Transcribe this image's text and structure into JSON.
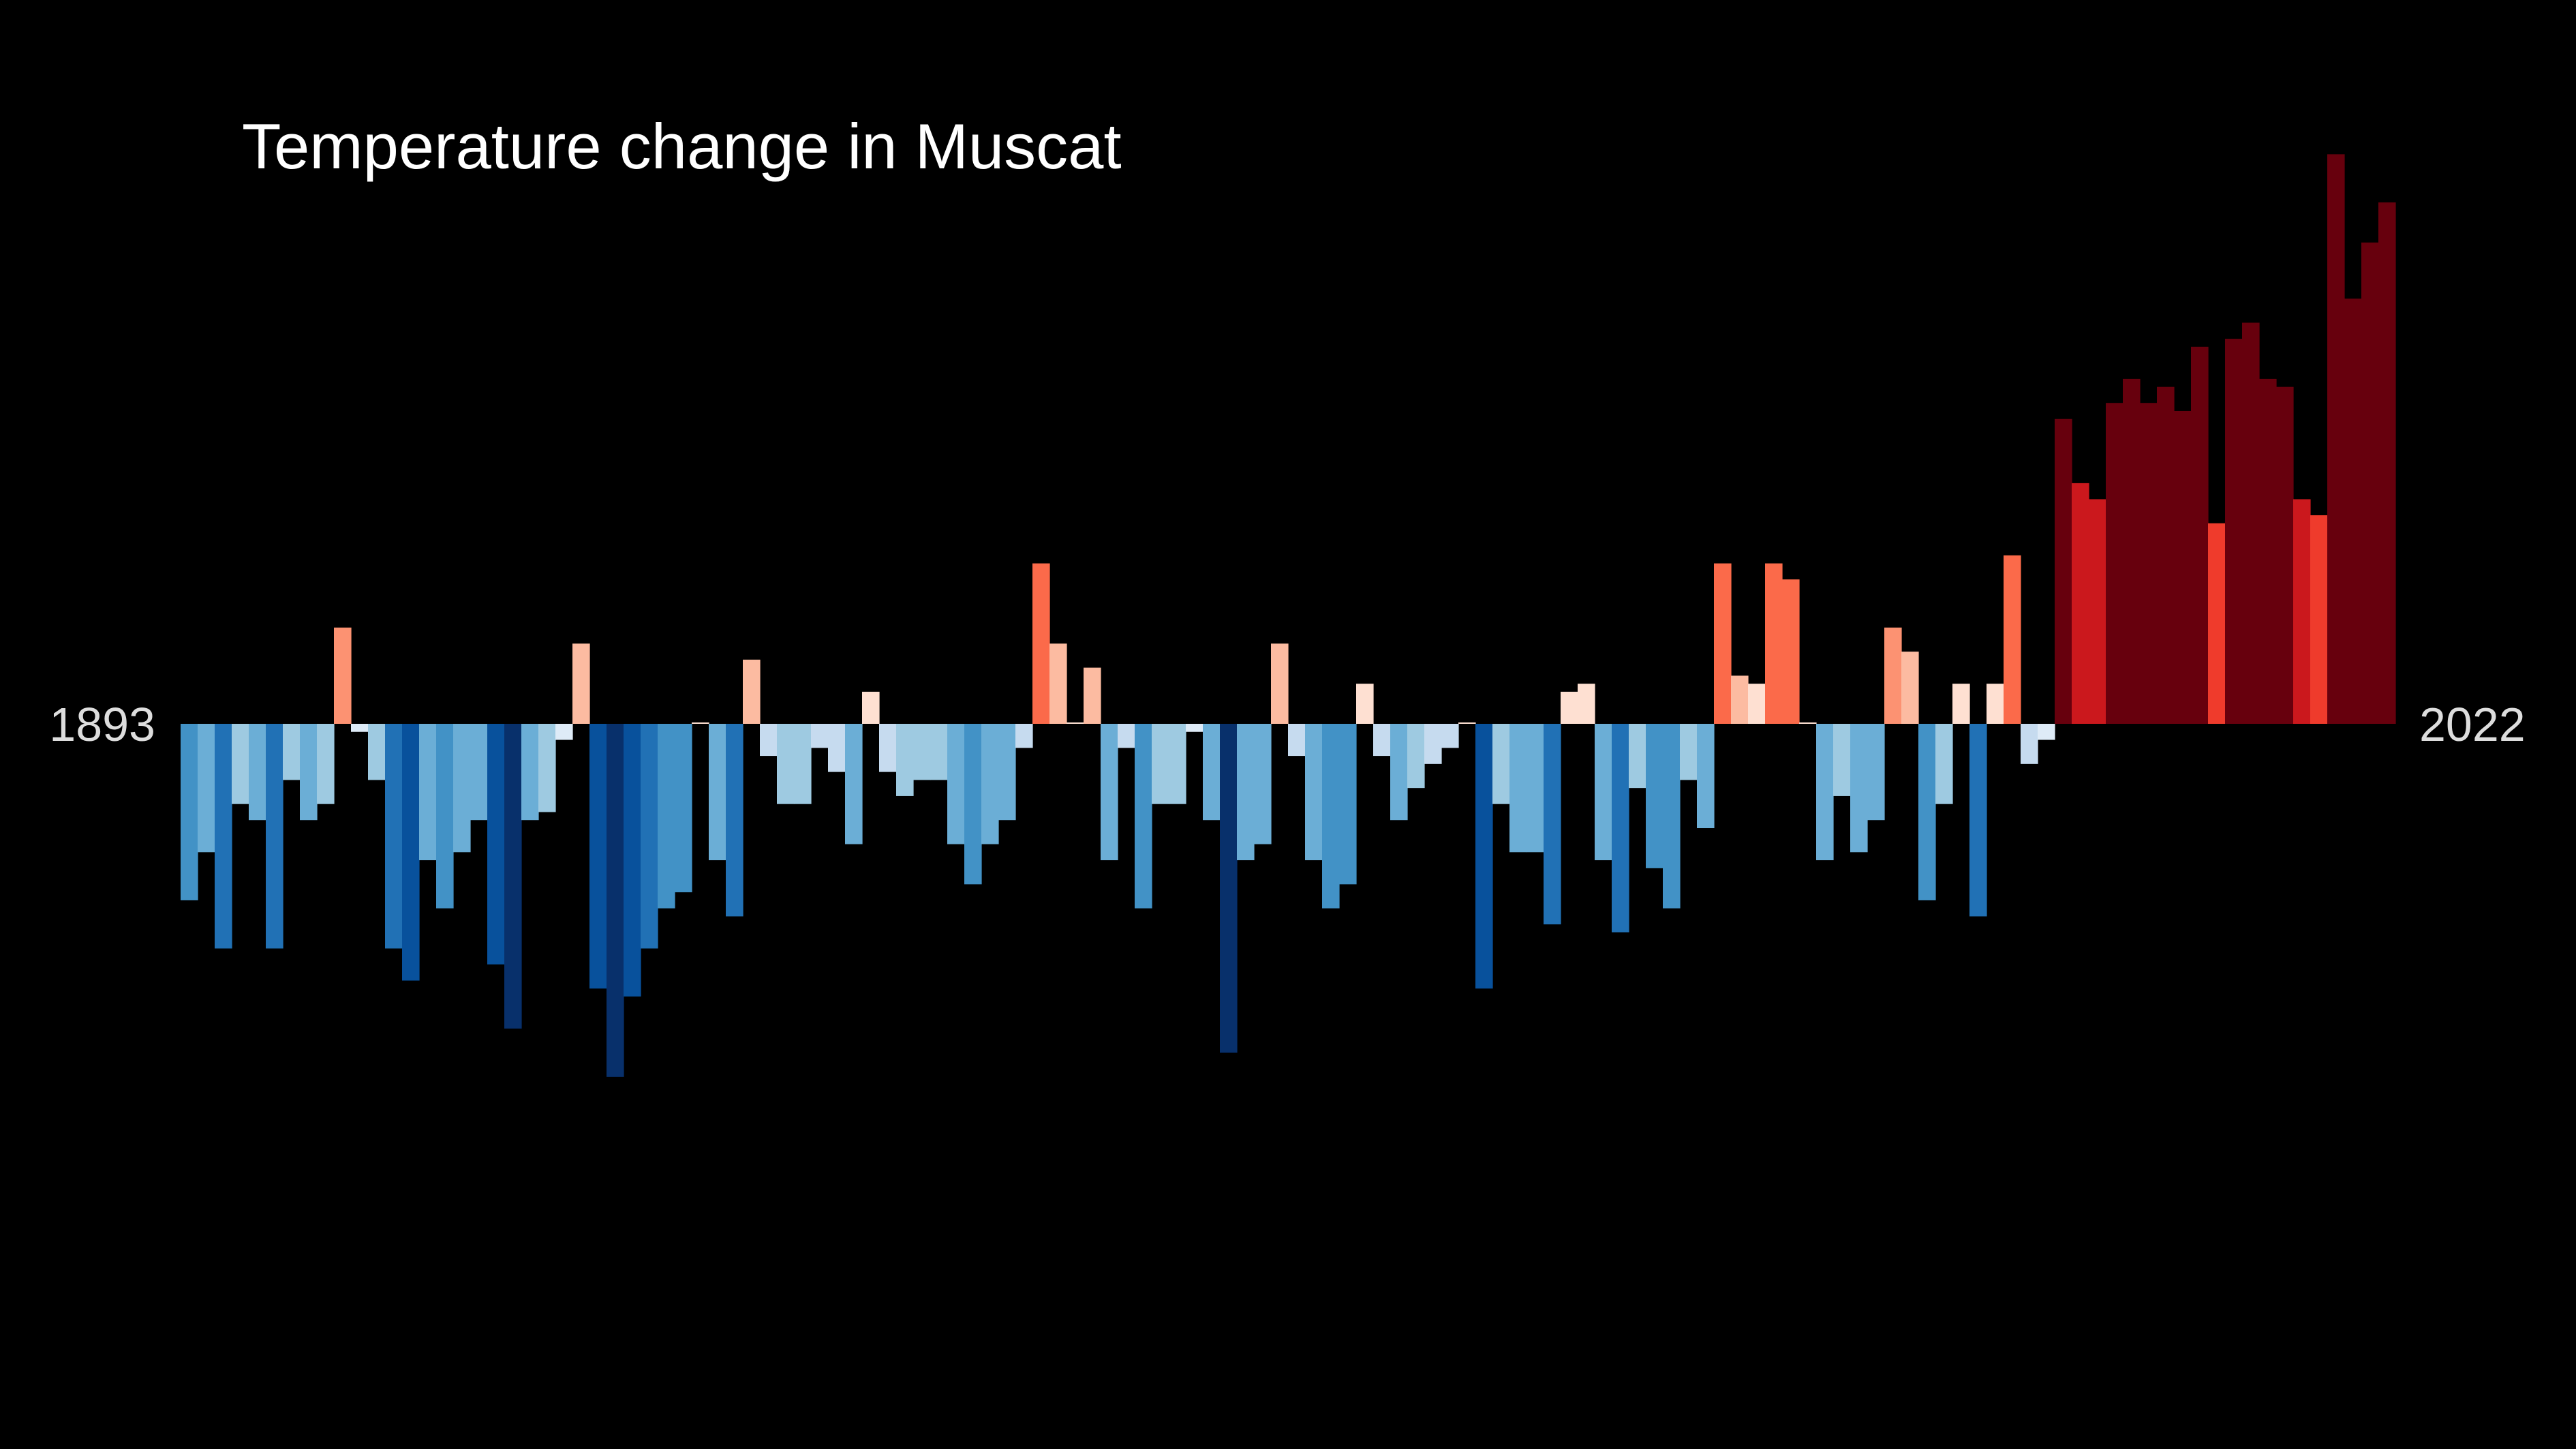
{
  "chart_data": {
    "type": "bar",
    "title": "Temperature change in Muscat",
    "xlabel": "",
    "ylabel": "",
    "start_label": "1893",
    "end_label": "2022",
    "x_start": 1893,
    "x_end": 2022,
    "colormap": "RdBu_r diverging (blue below baseline, red above)",
    "ylim": [
      -0.44,
      0.71
    ],
    "values": [
      -0.22,
      -0.16,
      -0.28,
      -0.1,
      -0.12,
      -0.28,
      -0.07,
      -0.12,
      -0.1,
      0.12,
      -0.01,
      -0.07,
      -0.28,
      -0.32,
      -0.17,
      -0.23,
      -0.16,
      -0.12,
      -0.3,
      -0.38,
      -0.12,
      -0.11,
      -0.02,
      0.1,
      -0.33,
      -0.44,
      -0.34,
      -0.28,
      -0.23,
      -0.21,
      0.0,
      -0.17,
      -0.24,
      0.08,
      -0.04,
      -0.1,
      -0.1,
      -0.03,
      -0.06,
      -0.15,
      0.04,
      -0.06,
      -0.09,
      -0.07,
      -0.07,
      -0.15,
      -0.2,
      -0.15,
      -0.12,
      -0.03,
      0.2,
      0.1,
      0.0,
      0.07,
      -0.17,
      -0.03,
      -0.23,
      -0.1,
      -0.1,
      -0.01,
      -0.12,
      -0.41,
      -0.17,
      -0.15,
      0.1,
      -0.04,
      -0.17,
      -0.23,
      -0.2,
      0.05,
      -0.04,
      -0.12,
      -0.08,
      -0.05,
      -0.03,
      0.0,
      -0.33,
      -0.1,
      -0.16,
      -0.16,
      -0.25,
      0.04,
      0.05,
      -0.17,
      -0.26,
      -0.08,
      -0.18,
      -0.23,
      -0.07,
      -0.13,
      0.2,
      0.06,
      0.05,
      0.2,
      0.18,
      0.0,
      -0.17,
      -0.09,
      -0.16,
      -0.12,
      0.12,
      0.09,
      -0.22,
      -0.1,
      0.05,
      -0.24,
      0.05,
      0.21,
      -0.05,
      -0.02,
      0.38,
      0.3,
      0.28,
      0.4,
      0.43,
      0.4,
      0.42,
      0.39,
      0.47,
      0.25,
      0.48,
      0.5,
      0.43,
      0.42,
      0.28,
      0.26,
      0.71,
      0.53,
      0.6,
      0.65
    ],
    "colors": {
      "background": "#000000",
      "blue_darkest": "#08306b",
      "blue_dark": "#08519c",
      "blue_mid": "#2171b5",
      "blue": "#4292c6",
      "blue_light": "#6baed6",
      "blue_lighter": "#9ecae1",
      "blue_pale": "#c6dbef",
      "blue_palest": "#deebf7",
      "red_palest": "#fee0d2",
      "red_pale": "#fcbba1",
      "red_light": "#fc9272",
      "red_mid": "#fb6a4a",
      "red": "#ef3b2c",
      "red_dark": "#cb181d",
      "red_darkest": "#67000d"
    }
  }
}
